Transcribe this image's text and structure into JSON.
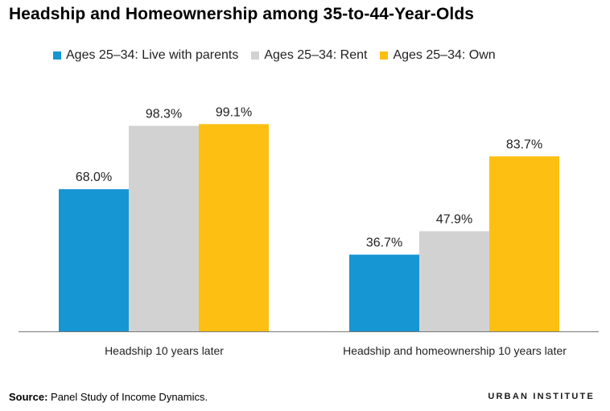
{
  "title": "Headship and Homeownership among 35-to-44-Year-Olds",
  "source": {
    "label": "Source:",
    "text": " Panel Study of Income Dynamics."
  },
  "brand": "URBAN INSTITUTE",
  "chart_data": {
    "type": "bar",
    "title": "Headship and Homeownership among 35-to-44-Year-Olds",
    "categories": [
      "Headship 10 years later",
      "Headship and homeownership 10 years later"
    ],
    "series": [
      {
        "name": "Ages 25–34: Live with parents",
        "values": [
          68.0,
          36.7
        ],
        "labels": [
          "68.0%",
          "36.7%"
        ],
        "color": "#1696d2"
      },
      {
        "name": "Ages 25–34: Rent",
        "values": [
          98.3,
          47.9
        ],
        "labels": [
          "98.3%",
          "47.9%"
        ],
        "color": "#d2d2d2"
      },
      {
        "name": "Ages 25–34: Own",
        "values": [
          99.1,
          83.7
        ],
        "labels": [
          "99.1%",
          "83.7%"
        ],
        "color": "#fdbf11"
      }
    ],
    "ylim": [
      0,
      100
    ],
    "grid": false,
    "legend_position": "top-left",
    "xlabel": "",
    "ylabel": ""
  }
}
